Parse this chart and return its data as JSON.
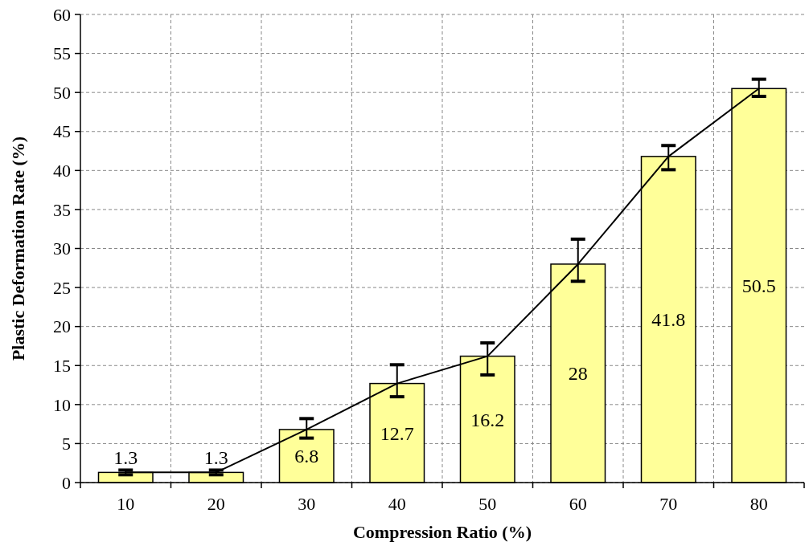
{
  "chart_data": {
    "type": "bar",
    "xlabel": "Compression Ratio (%)",
    "ylabel": "Plastic Deformation Rate (%)",
    "categories": [
      "10",
      "20",
      "30",
      "40",
      "50",
      "60",
      "70",
      "80"
    ],
    "series": [
      {
        "color": "#ffff99",
        "values": [
          1.3,
          1.3,
          6.8,
          12.7,
          16.2,
          28,
          41.8,
          50.5
        ],
        "value_labels": [
          "1.3",
          "1.3",
          "6.8",
          "12.7",
          "16.2",
          "28",
          "41.8",
          "50.5"
        ],
        "errors": [
          [
            1.0,
            1.6
          ],
          [
            1.0,
            1.6
          ],
          [
            5.7,
            8.2
          ],
          [
            11.0,
            15.1
          ],
          [
            13.8,
            17.9
          ],
          [
            25.8,
            31.2
          ],
          [
            40.1,
            43.2
          ],
          [
            49.5,
            51.7
          ]
        ]
      },
      {
        "type": "line",
        "color": "#000000",
        "values": [
          1.3,
          1.3,
          6.8,
          12.7,
          16.2,
          28,
          41.8,
          50.5
        ]
      }
    ],
    "ylim": [
      0,
      60
    ],
    "yticks": [
      0,
      5,
      10,
      15,
      20,
      25,
      30,
      35,
      40,
      45,
      50,
      55,
      60
    ],
    "grid": true,
    "marker": "none",
    "line_style": "solid"
  }
}
